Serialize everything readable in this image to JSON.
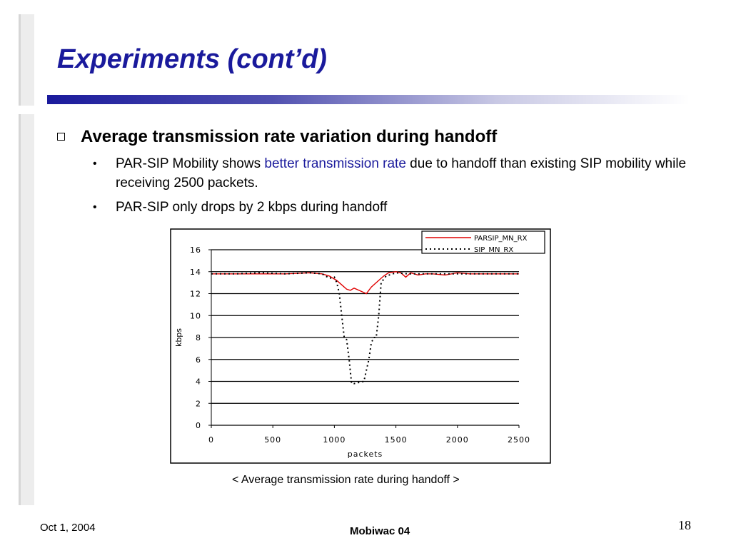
{
  "slide": {
    "title": "Experiments (cont’d)",
    "bullet": "Average transmission rate variation during handoff",
    "sub1": {
      "before": "PAR-SIP Mobility shows ",
      "highlight": "better transmission rate",
      "after": " due to handoff than existing SIP mobility while receiving 2500 packets."
    },
    "sub2": "PAR-SIP only drops by 2 kbps during handoff",
    "caption": "< Average transmission rate during handoff >",
    "colors": {
      "title": "#1a1a9c",
      "highlight": "#1a1a9c",
      "parsip": "#e00000",
      "sip": "#000000"
    }
  },
  "footer": {
    "date": "Oct 1, 2004",
    "title": "Mobiwac 04",
    "page": "18"
  },
  "chart_data": {
    "type": "line",
    "title": "",
    "xlabel": "packets",
    "ylabel": "kbps",
    "xlim": [
      0,
      2500
    ],
    "ylim": [
      0,
      16
    ],
    "xticks": [
      0,
      500,
      1000,
      1500,
      2000,
      2500
    ],
    "yticks": [
      0,
      2,
      4,
      6,
      8,
      10,
      12,
      14,
      16
    ],
    "grid": "horizontal",
    "legend_position": "top-right",
    "series": [
      {
        "name": "PARSIP_MN_RX",
        "style": "solid",
        "color": "#e00000",
        "x": [
          0,
          200,
          400,
          600,
          800,
          900,
          960,
          1020,
          1060,
          1100,
          1130,
          1160,
          1200,
          1240,
          1260,
          1300,
          1350,
          1400,
          1440,
          1500,
          1540,
          1580,
          1620,
          1680,
          1740,
          1800,
          1900,
          2000,
          2100,
          2200,
          2350,
          2500
        ],
        "y": [
          13.8,
          13.8,
          13.8,
          13.8,
          13.9,
          13.8,
          13.6,
          13.2,
          12.8,
          12.4,
          12.3,
          12.5,
          12.3,
          12.1,
          12.0,
          12.6,
          13.1,
          13.6,
          13.9,
          14.0,
          13.9,
          13.5,
          13.9,
          13.7,
          13.8,
          13.8,
          13.7,
          13.9,
          13.8,
          13.8,
          13.8,
          13.8
        ]
      },
      {
        "name": "SIP_MN_RX",
        "style": "dotted",
        "color": "#000000",
        "x": [
          0,
          200,
          400,
          600,
          800,
          900,
          960,
          1000,
          1020,
          1040,
          1060,
          1080,
          1100,
          1120,
          1140,
          1160,
          1200,
          1240,
          1260,
          1280,
          1300,
          1320,
          1340,
          1360,
          1380,
          1420,
          1500,
          1600,
          1800,
          2000,
          2200,
          2350,
          2500
        ],
        "y": [
          13.8,
          13.8,
          13.9,
          13.8,
          13.9,
          13.8,
          13.4,
          13.5,
          13.0,
          12.0,
          10.0,
          8.0,
          7.8,
          6.0,
          3.8,
          3.8,
          3.9,
          4.0,
          5.0,
          6.0,
          7.5,
          8.0,
          8.0,
          10.0,
          13.0,
          13.6,
          13.9,
          13.8,
          13.8,
          13.8,
          13.8,
          13.8,
          13.8
        ]
      }
    ]
  }
}
